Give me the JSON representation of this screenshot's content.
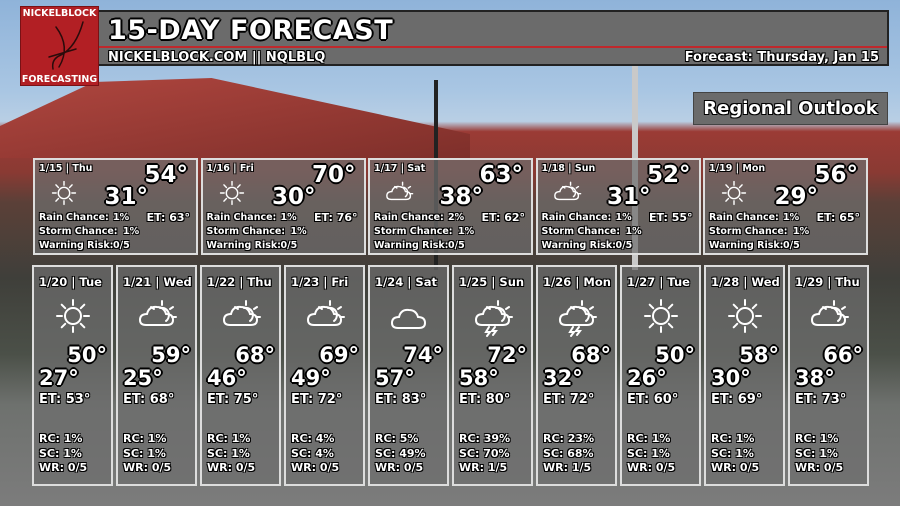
{
  "header": {
    "title": "15-DAY FORECAST",
    "subtitle": "NICKELBLOCK.COM || NQLBLQ",
    "forecast_date": "Forecast: Thursday, Jan 15",
    "brand_color": "#b21f24",
    "accent_line": "#c0282c"
  },
  "logo": {
    "top": "NICKELBLOCK",
    "bottom": "FORECASTING"
  },
  "regional": "Regional Outlook",
  "labels": {
    "rain": "Rain Chance:",
    "storm": "Storm Chance:",
    "warn": "Warning Risk:"
  },
  "week1": [
    {
      "date": "1/15 | Thu",
      "icon": "sun",
      "hi": "54°",
      "lo": "31°",
      "et": "ET: 63°",
      "rain": "1%",
      "storm": "1%",
      "warn": "0/5"
    },
    {
      "date": "1/16 | Fri",
      "icon": "sun",
      "hi": "70°",
      "lo": "30°",
      "et": "ET: 76°",
      "rain": "1%",
      "storm": "1%",
      "warn": "0/5"
    },
    {
      "date": "1/17 | Sat",
      "icon": "partly-cloudy",
      "hi": "63°",
      "lo": "38°",
      "et": "ET: 62°",
      "rain": "2%",
      "storm": "1%",
      "warn": "0/5"
    },
    {
      "date": "1/18 | Sun",
      "icon": "partly-cloudy",
      "hi": "52°",
      "lo": "31°",
      "et": "ET: 55°",
      "rain": "1%",
      "storm": "1%",
      "warn": "0/5"
    },
    {
      "date": "1/19 | Mon",
      "icon": "sun",
      "hi": "56°",
      "lo": "29°",
      "et": "ET: 65°",
      "rain": "1%",
      "storm": "1%",
      "warn": "0/5"
    }
  ],
  "week2": [
    {
      "date": "1/20 | Tue",
      "icon": "sun",
      "hi": "50°",
      "lo": "27°",
      "et": "ET: 53°",
      "rc": "RC: 1%",
      "sc": "SC: 1%",
      "wr": "WR: 0/5"
    },
    {
      "date": "1/21 | Wed",
      "icon": "partly-cloudy",
      "hi": "59°",
      "lo": "25°",
      "et": "ET: 68°",
      "rc": "RC: 1%",
      "sc": "SC: 1%",
      "wr": "WR: 0/5"
    },
    {
      "date": "1/22 | Thu",
      "icon": "partly-cloudy",
      "hi": "68°",
      "lo": "46°",
      "et": "ET: 75°",
      "rc": "RC: 1%",
      "sc": "SC: 1%",
      "wr": "WR: 0/5"
    },
    {
      "date": "1/23 | Fri",
      "icon": "partly-cloudy",
      "hi": "69°",
      "lo": "49°",
      "et": "ET: 72°",
      "rc": "RC: 4%",
      "sc": "SC: 4%",
      "wr": "WR: 0/5"
    },
    {
      "date": "1/24 | Sat",
      "icon": "cloud",
      "hi": "74°",
      "lo": "57°",
      "et": "ET: 83°",
      "rc": "RC: 5%",
      "sc": "SC: 49%",
      "wr": "WR: 0/5"
    },
    {
      "date": "1/25 | Sun",
      "icon": "partly-cloudy-storm",
      "hi": "72°",
      "lo": "58°",
      "et": "ET: 80°",
      "rc": "RC: 39%",
      "sc": "SC: 70%",
      "wr": "WR: 1/5"
    },
    {
      "date": "1/26 | Mon",
      "icon": "partly-cloudy-storm",
      "hi": "68°",
      "lo": "32°",
      "et": "ET: 72°",
      "rc": "RC: 23%",
      "sc": "SC: 68%",
      "wr": "WR: 1/5"
    },
    {
      "date": "1/27 | Tue",
      "icon": "sun",
      "hi": "50°",
      "lo": "26°",
      "et": "ET: 60°",
      "rc": "RC: 1%",
      "sc": "SC: 1%",
      "wr": "WR: 0/5"
    },
    {
      "date": "1/28 | Wed",
      "icon": "sun",
      "hi": "58°",
      "lo": "30°",
      "et": "ET: 69°",
      "rc": "RC: 1%",
      "sc": "SC: 1%",
      "wr": "WR: 0/5"
    },
    {
      "date": "1/29 | Thu",
      "icon": "partly-cloudy",
      "hi": "66°",
      "lo": "38°",
      "et": "ET: 73°",
      "rc": "RC: 1%",
      "sc": "SC: 1%",
      "wr": "WR: 0/5"
    }
  ]
}
